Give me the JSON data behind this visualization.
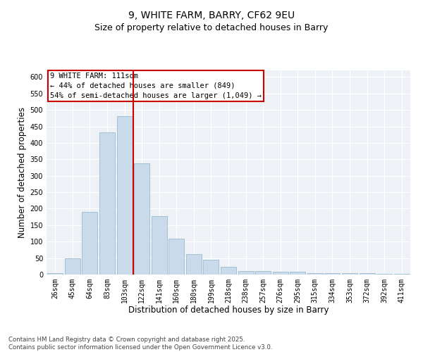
{
  "title": "9, WHITE FARM, BARRY, CF62 9EU",
  "subtitle": "Size of property relative to detached houses in Barry",
  "xlabel": "Distribution of detached houses by size in Barry",
  "ylabel": "Number of detached properties",
  "categories": [
    "26sqm",
    "45sqm",
    "64sqm",
    "83sqm",
    "103sqm",
    "122sqm",
    "141sqm",
    "160sqm",
    "180sqm",
    "199sqm",
    "218sqm",
    "238sqm",
    "257sqm",
    "276sqm",
    "295sqm",
    "315sqm",
    "334sqm",
    "353sqm",
    "372sqm",
    "392sqm",
    "411sqm"
  ],
  "values": [
    5,
    50,
    190,
    432,
    480,
    338,
    178,
    108,
    62,
    44,
    24,
    11,
    11,
    8,
    8,
    4,
    4,
    4,
    5,
    3,
    3
  ],
  "bar_color": "#c9daea",
  "bar_edge_color": "#9bbcce",
  "vline_color": "#cc0000",
  "vline_pos": 4.5,
  "annotation_text": "9 WHITE FARM: 111sqm\n← 44% of detached houses are smaller (849)\n54% of semi-detached houses are larger (1,049) →",
  "annotation_box_color": "#ffffff",
  "annotation_box_edge_color": "#cc0000",
  "ylim": [
    0,
    620
  ],
  "yticks": [
    0,
    50,
    100,
    150,
    200,
    250,
    300,
    350,
    400,
    450,
    500,
    550,
    600
  ],
  "bg_color": "#eef2f6",
  "grid_color": "#ffffff",
  "footnote": "Contains HM Land Registry data © Crown copyright and database right 2025.\nContains public sector information licensed under the Open Government Licence v3.0.",
  "title_fontsize": 10,
  "subtitle_fontsize": 9,
  "label_fontsize": 8.5,
  "tick_fontsize": 7,
  "annot_fontsize": 7.5,
  "footnote_fontsize": 6.2
}
